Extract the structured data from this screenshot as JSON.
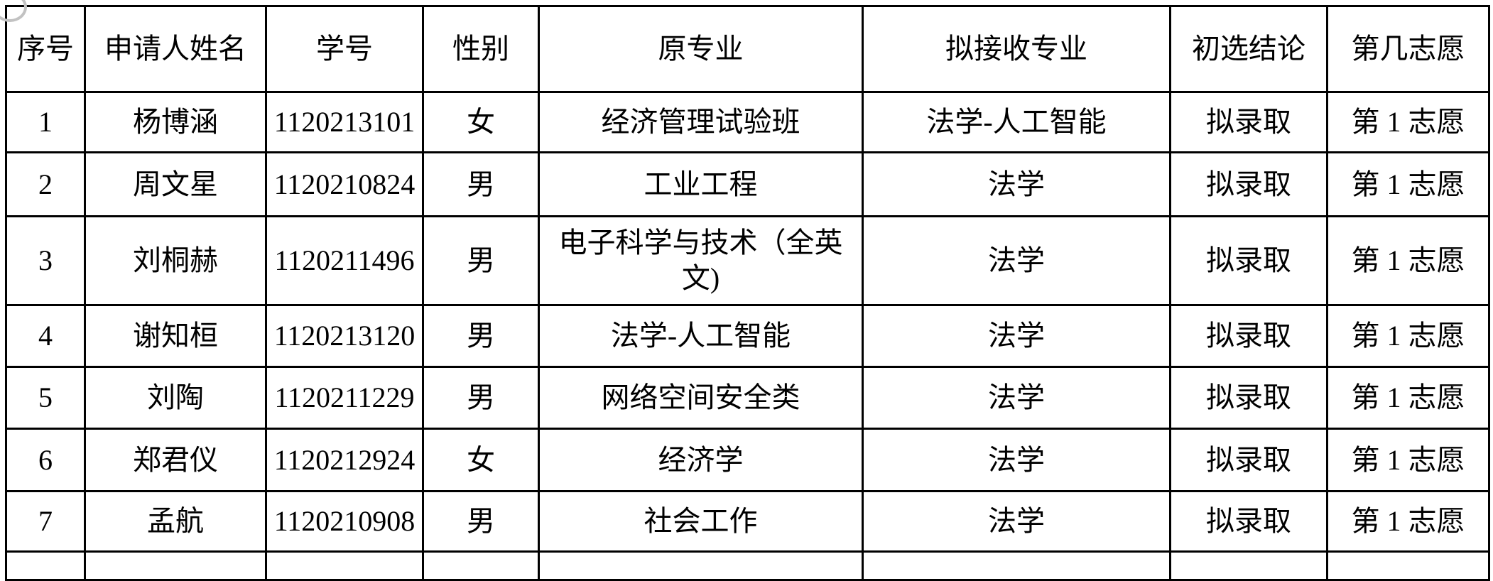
{
  "colors": {
    "border": "#000000",
    "text": "#000000",
    "background": "#ffffff",
    "scan_artifact": "#c2c2c2"
  },
  "table": {
    "columns": [
      {
        "key": "index",
        "label": "序号"
      },
      {
        "key": "name",
        "label": "申请人姓名"
      },
      {
        "key": "student_id",
        "label": "学号"
      },
      {
        "key": "gender",
        "label": "性别"
      },
      {
        "key": "original_major",
        "label": "原专业"
      },
      {
        "key": "target_major",
        "label": "拟接收专业"
      },
      {
        "key": "conclusion",
        "label": "初选结论"
      },
      {
        "key": "preference",
        "label": "第几志愿"
      }
    ],
    "rows": [
      {
        "index": "1",
        "name": "杨博涵",
        "student_id": "1120213101",
        "gender": "女",
        "original_major": "经济管理试验班",
        "target_major": "法学-人工智能",
        "conclusion": "拟录取",
        "preference": "第 1 志愿"
      },
      {
        "index": "2",
        "name": "周文星",
        "student_id": "1120210824",
        "gender": "男",
        "original_major": "工业工程",
        "target_major": "法学",
        "conclusion": "拟录取",
        "preference": "第 1 志愿"
      },
      {
        "index": "3",
        "name": "刘桐赫",
        "student_id": "1120211496",
        "gender": "男",
        "original_major": "电子科学与技术（全英文)",
        "target_major": "法学",
        "conclusion": "拟录取",
        "preference": "第 1 志愿"
      },
      {
        "index": "4",
        "name": "谢知桓",
        "student_id": "1120213120",
        "gender": "男",
        "original_major": "法学-人工智能",
        "target_major": "法学",
        "conclusion": "拟录取",
        "preference": "第 1 志愿"
      },
      {
        "index": "5",
        "name": "刘陶",
        "student_id": "1120211229",
        "gender": "男",
        "original_major": "网络空间安全类",
        "target_major": "法学",
        "conclusion": "拟录取",
        "preference": "第 1 志愿"
      },
      {
        "index": "6",
        "name": "郑君仪",
        "student_id": "1120212924",
        "gender": "女",
        "original_major": "经济学",
        "target_major": "法学",
        "conclusion": "拟录取",
        "preference": "第 1 志愿"
      },
      {
        "index": "7",
        "name": "孟航",
        "student_id": "1120210908",
        "gender": "男",
        "original_major": "社会工作",
        "target_major": "法学",
        "conclusion": "拟录取",
        "preference": "第 1 志愿"
      }
    ],
    "partial_bottom_row_visible": true
  }
}
